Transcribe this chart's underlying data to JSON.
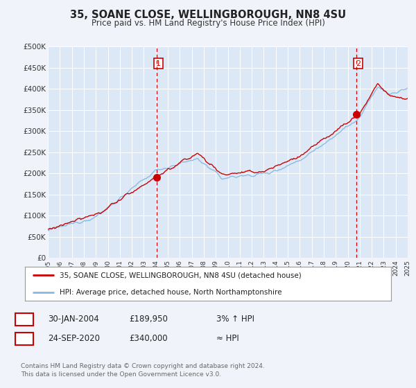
{
  "title": "35, SOANE CLOSE, WELLINGBOROUGH, NN8 4SU",
  "subtitle": "Price paid vs. HM Land Registry's House Price Index (HPI)",
  "bg_color": "#f0f4fa",
  "plot_bg_color": "#dce8f5",
  "grid_color": "#c8d8ea",
  "xmin": 1995,
  "xmax": 2025,
  "ymin": 0,
  "ymax": 500000,
  "yticks": [
    0,
    50000,
    100000,
    150000,
    200000,
    250000,
    300000,
    350000,
    400000,
    450000,
    500000
  ],
  "ytick_labels": [
    "£0",
    "£50K",
    "£100K",
    "£150K",
    "£200K",
    "£250K",
    "£300K",
    "£350K",
    "£400K",
    "£450K",
    "£500K"
  ],
  "xticks": [
    1995,
    1996,
    1997,
    1998,
    1999,
    2000,
    2001,
    2002,
    2003,
    2004,
    2005,
    2006,
    2007,
    2008,
    2009,
    2010,
    2011,
    2012,
    2013,
    2014,
    2015,
    2016,
    2017,
    2018,
    2019,
    2020,
    2021,
    2022,
    2023,
    2024,
    2025
  ],
  "sale1_x": 2004.08,
  "sale1_y": 189950,
  "sale2_x": 2020.73,
  "sale2_y": 340000,
  "sale1_date": "30-JAN-2004",
  "sale1_price": "£189,950",
  "sale1_hpi": "3% ↑ HPI",
  "sale2_date": "24-SEP-2020",
  "sale2_price": "£340,000",
  "sale2_hpi": "≈ HPI",
  "legend_line1": "35, SOANE CLOSE, WELLINGBOROUGH, NN8 4SU (detached house)",
  "legend_line2": "HPI: Average price, detached house, North Northamptonshire",
  "footer1": "Contains HM Land Registry data © Crown copyright and database right 2024.",
  "footer2": "This data is licensed under the Open Government Licence v3.0.",
  "line_color_red": "#cc0000",
  "line_color_blue": "#88b8e0",
  "vline_color": "#cc0000",
  "marker_color": "#cc0000",
  "label_box_color": "#cc0000"
}
